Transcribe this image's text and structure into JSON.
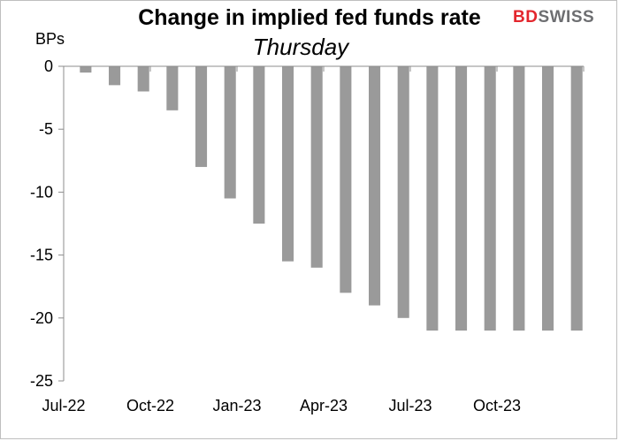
{
  "chart_data": {
    "type": "bar",
    "title": "Change in implied fed funds rate",
    "subtitle": "Thursday",
    "ylabel": "BPs",
    "xlabel": "",
    "ylim": [
      -25,
      0
    ],
    "yticks": [
      0,
      -5,
      -10,
      -15,
      -20,
      -25
    ],
    "xtick_labels": [
      "Jul-22",
      "Oct-22",
      "Jan-23",
      "Apr-23",
      "Jul-23",
      "Oct-23"
    ],
    "categories": [
      "Jul-22",
      "Aug-22",
      "Sep-22",
      "Oct-22",
      "Nov-22",
      "Dec-22",
      "Jan-23",
      "Feb-23",
      "Mar-23",
      "Apr-23",
      "May-23",
      "Jun-23",
      "Jul-23",
      "Aug-23",
      "Sep-23",
      "Oct-23",
      "Nov-23",
      "Dec-23"
    ],
    "values": [
      -0.5,
      -1.5,
      -2,
      -3.5,
      -8,
      -10.5,
      -12.5,
      -15.5,
      -16,
      -18,
      -19,
      -20,
      -21,
      -21,
      -21,
      -21,
      -21,
      -21
    ],
    "bar_color": "#9a9a9a",
    "grid": false,
    "legend": "none"
  },
  "logo": {
    "part1": "BD",
    "part2": "SWISS"
  }
}
